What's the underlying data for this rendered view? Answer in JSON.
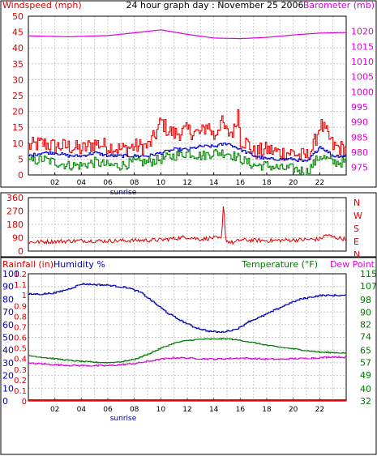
{
  "header": {
    "windspeed_label": "Windspeed (mph)",
    "title": "24 hour graph day : November 25 2006",
    "barometer_label": "Barometer (mb)"
  },
  "colors": {
    "wind_gust": "#ee0000",
    "wind_avg": "#0000cc",
    "wind_low": "#008800",
    "barometer": "#dd00dd",
    "direction": "#dd0000",
    "humidity": "#0000aa",
    "temperature": "#007700",
    "dewpoint": "#dd00dd",
    "rainfall": "#ee0000",
    "grid": "#c8c8c8"
  },
  "chart_data": [
    {
      "type": "line",
      "id": "wind-barometer",
      "title": "24 hour graph day : November 25 2006",
      "left_axis": {
        "label": "Windspeed (mph)",
        "range": [
          0,
          50
        ],
        "ticks": [
          0,
          5,
          10,
          15,
          20,
          25,
          30,
          35,
          40,
          45,
          50
        ]
      },
      "right_axis": {
        "label": "Barometer (mb)",
        "range": [
          972.5,
          1025
        ],
        "ticks": [
          975,
          980,
          985,
          990,
          995,
          1000,
          1005,
          1010,
          1015,
          1020
        ]
      },
      "x_ticks": [
        "02",
        "04",
        "06",
        "08",
        "10",
        "12",
        "14",
        "16",
        "18",
        "20",
        "22"
      ],
      "x_marker": "sunrise",
      "series": [
        {
          "axis": "left",
          "x": [
            0,
            1,
            2,
            3,
            4,
            5,
            6,
            7,
            8,
            9,
            9.5,
            10,
            10.5,
            11,
            12,
            13,
            13.5,
            14,
            14.5,
            15,
            15.5,
            15.8,
            16,
            16.5,
            17,
            18,
            19,
            20,
            20.5,
            21,
            21.5,
            22,
            22.5,
            23,
            24
          ],
          "y": [
            9,
            10,
            9,
            9,
            8,
            10,
            9,
            8,
            9,
            9,
            12,
            17,
            14,
            13,
            14,
            13,
            16,
            12,
            17,
            13,
            14,
            20,
            11,
            10,
            7,
            8,
            7,
            7,
            6,
            6,
            9,
            16,
            13,
            9,
            8
          ]
        },
        {
          "axis": "left",
          "x": [
            0,
            1,
            2,
            3,
            4,
            5,
            6,
            7,
            8,
            9,
            10,
            11,
            12,
            13,
            14,
            15,
            16,
            17,
            18,
            19,
            20,
            21,
            22,
            23,
            24
          ],
          "y": [
            6,
            7,
            7,
            6,
            6,
            7,
            6,
            6,
            6,
            6,
            7,
            8,
            8,
            9,
            9,
            10,
            8,
            6,
            5,
            5,
            5,
            4,
            9,
            6,
            6
          ]
        },
        {
          "axis": "left",
          "x": [
            0,
            1,
            2,
            3,
            4,
            5,
            6,
            7,
            8,
            9,
            10,
            11,
            12,
            13,
            14,
            15,
            16,
            17,
            18,
            19,
            20,
            21,
            22,
            23,
            24
          ],
          "y": [
            4,
            5,
            4,
            3,
            3,
            4,
            3,
            3,
            4,
            4,
            5,
            6,
            7,
            6,
            7,
            7,
            5,
            3,
            3,
            2,
            2,
            1,
            6,
            4,
            4
          ]
        },
        {
          "axis": "right",
          "x": [
            0,
            3,
            6,
            8,
            10,
            12,
            14,
            16,
            18,
            20,
            22,
            24
          ],
          "y": [
            1018.5,
            1018.2,
            1018.6,
            1019.5,
            1020.5,
            1019.0,
            1017.8,
            1017.6,
            1018.0,
            1018.8,
            1019.4,
            1019.6
          ]
        }
      ]
    },
    {
      "type": "line",
      "id": "wind-direction",
      "left_axis": {
        "range": [
          0,
          360
        ],
        "ticks": [
          0,
          90,
          180,
          270,
          360
        ]
      },
      "right_axis": {
        "labels": [
          "N",
          "W",
          "S",
          "E",
          "N"
        ]
      },
      "series": [
        {
          "x": [
            0,
            2,
            4,
            6,
            8,
            10,
            11,
            12,
            13,
            14,
            14.6,
            14.75,
            14.9,
            15.5,
            16,
            18,
            20,
            22,
            22.5,
            23,
            24
          ],
          "y": [
            60,
            65,
            70,
            68,
            72,
            75,
            85,
            95,
            80,
            90,
            80,
            355,
            70,
            55,
            75,
            70,
            75,
            80,
            110,
            95,
            80
          ]
        }
      ]
    },
    {
      "type": "line",
      "id": "rain-humidity-temperature",
      "labels": [
        "Rainfall (in)",
        "Humidity %",
        "Temperature (°F)",
        "Dew Point"
      ],
      "rainfall_axis": {
        "range": [
          0,
          1.2
        ],
        "ticks": [
          0,
          0.1,
          0.2,
          0.3,
          0.4,
          0.5,
          0.6,
          0.7,
          0.8,
          0.9,
          1,
          1.1,
          1.2
        ]
      },
      "humidity_axis": {
        "range": [
          0,
          100
        ],
        "ticks": [
          0,
          10,
          20,
          30,
          40,
          50,
          60,
          70,
          80,
          90,
          100
        ]
      },
      "temperature_axis": {
        "range": [
          32,
          115
        ],
        "ticks": [
          32,
          40,
          49,
          57,
          65,
          74,
          82,
          90,
          98,
          107,
          115
        ]
      },
      "x_ticks": [
        "02",
        "04",
        "06",
        "08",
        "10",
        "12",
        "14",
        "16",
        "18",
        "20",
        "22"
      ],
      "x_marker": "sunrise",
      "series": [
        {
          "name": "Humidity %",
          "axis": "humidity",
          "x": [
            0,
            1,
            2,
            3,
            3.5,
            4,
            6,
            7.5,
            8.5,
            9.5,
            10.5,
            11.5,
            12.5,
            13.5,
            14.5,
            15.5,
            16,
            16.5,
            17.5,
            18.5,
            19.5,
            20.5,
            21.5,
            22,
            23,
            24
          ],
          "y": [
            84,
            84,
            85,
            88,
            90,
            92,
            91,
            89,
            85,
            77,
            69,
            63,
            58,
            55,
            54,
            56,
            58,
            62,
            66,
            71,
            76,
            80,
            82,
            83,
            83,
            83
          ]
        },
        {
          "name": "Temperature (°F)",
          "axis": "temperature",
          "x": [
            0,
            1,
            2,
            3,
            4,
            5,
            6,
            7,
            8,
            9,
            10,
            11,
            12,
            13,
            14,
            15,
            16,
            17,
            18,
            19,
            20,
            21,
            22,
            23,
            24
          ],
          "y": [
            61.5,
            60.5,
            59.5,
            58.5,
            57.8,
            57.2,
            57.0,
            57.6,
            59.2,
            62.5,
            66.5,
            69.8,
            71.5,
            72.3,
            72.4,
            72.6,
            71.5,
            70.0,
            68.3,
            67.0,
            66.0,
            64.8,
            63.8,
            63.5,
            63.3
          ]
        },
        {
          "name": "Dew Point",
          "axis": "temperature",
          "x": [
            0,
            1,
            2,
            3,
            4,
            5,
            6,
            7,
            8,
            9,
            10,
            11,
            12,
            13,
            14,
            15,
            16,
            17,
            18,
            19,
            20,
            21,
            22,
            23,
            24
          ],
          "y": [
            56.5,
            56.2,
            55.6,
            55.2,
            55.1,
            55.0,
            55.0,
            55.7,
            56.4,
            57.8,
            59.3,
            60.2,
            60.0,
            59.5,
            59.3,
            59.6,
            60.0,
            59.6,
            59.3,
            59.2,
            59.6,
            59.8,
            60.2,
            60.8,
            60.5
          ]
        },
        {
          "name": "Rainfall (in)",
          "axis": "rainfall",
          "x": [
            0,
            24
          ],
          "y": [
            0,
            0
          ]
        }
      ]
    }
  ]
}
